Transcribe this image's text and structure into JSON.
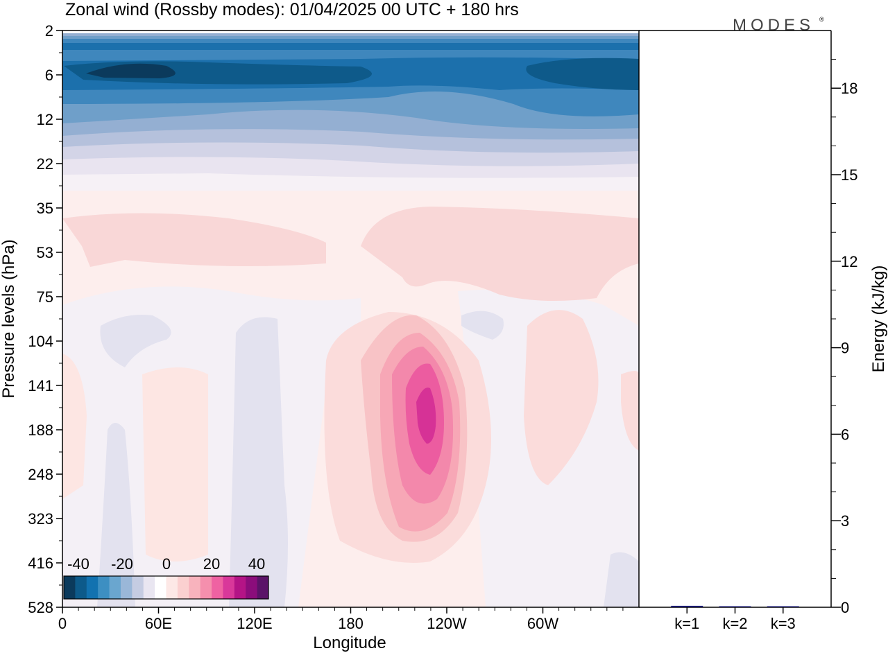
{
  "chart_data": {
    "type": "heatmap",
    "title": "Zonal wind (Rossby modes):  01/04/2025  00 UTC  + 180 hrs",
    "logo_text": "MODES",
    "logo_mark": "®",
    "xlabel": "Longitude",
    "ylabel": "Pressure levels (hPa)",
    "x_ticks": [
      "0",
      "60E",
      "120E",
      "180",
      "120W",
      "60W"
    ],
    "y_ticks": [
      "2",
      "6",
      "12",
      "22",
      "35",
      "53",
      "75",
      "104",
      "141",
      "188",
      "248",
      "323",
      "416",
      "528"
    ],
    "colorbar": {
      "tick_labels": [
        "-40",
        "-20",
        "0",
        "20",
        "40"
      ],
      "range": [
        -40,
        40
      ],
      "colors": [
        "#0b3a5c",
        "#0d5a8a",
        "#1272b0",
        "#3d8fc2",
        "#6aa6cf",
        "#9ab7d8",
        "#c5cce2",
        "#e9e6f1",
        "#ffffff",
        "#fde8e6",
        "#fbd0d0",
        "#f8b3bd",
        "#f58fad",
        "#ef62a2",
        "#d9389a",
        "#b41486",
        "#8b0d7b",
        "#5b1368"
      ]
    },
    "fields": {
      "description_levels": [
        {
          "band": "2-6 hPa",
          "value": -30
        },
        {
          "band": "6-12 hPa",
          "value": -25
        },
        {
          "band": "12-22 hPa",
          "value": -12
        },
        {
          "band": "22-35 hPa",
          "value": -2
        },
        {
          "band": "35-75 hPa",
          "value": 5
        },
        {
          "band": "75-528 hPa",
          "value": 0
        }
      ],
      "jet_maximum": {
        "longitude": "~110W",
        "pressure_hPa": 160,
        "value": 35
      }
    },
    "energy_bars": {
      "ylabel": "Energy (kJ/kg)",
      "y_ticks": [
        "0",
        "3",
        "6",
        "9",
        "12",
        "15",
        "18"
      ],
      "y_tick_values": [
        0,
        3,
        6,
        9,
        12,
        15,
        18
      ],
      "ylim": [
        0,
        20
      ],
      "categories": [
        "k=1",
        "k=2",
        "k=3"
      ],
      "values": [
        0.05,
        0.02,
        0.02
      ],
      "bar_color": "#1a1a6e"
    }
  }
}
